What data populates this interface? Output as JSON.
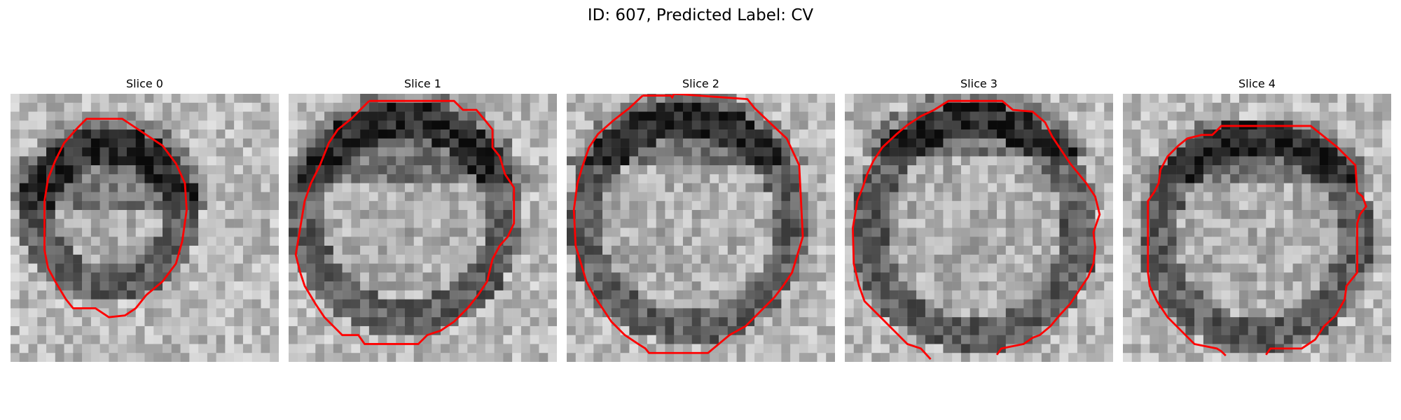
{
  "figure": {
    "title": "ID: 607, Predicted Label: CV",
    "slices": [
      {
        "label": "Slice 0"
      },
      {
        "label": "Slice 1"
      },
      {
        "label": "Slice 2"
      },
      {
        "label": "Slice 3"
      },
      {
        "label": "Slice 4"
      }
    ]
  },
  "colors": {
    "contour": "#ff0000",
    "background": "#ffffff"
  }
}
